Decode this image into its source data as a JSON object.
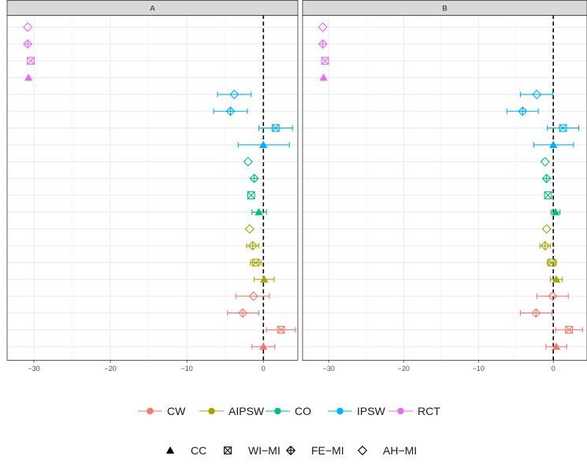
{
  "chart_data": {
    "type": "scatter",
    "subtype": "forest-plot with error bars, faceted",
    "facets": [
      "A",
      "B"
    ],
    "x_ticks": [
      -30,
      -20,
      -10,
      0
    ],
    "x_tick_labels": [
      "−30",
      "−20",
      "−10",
      "0"
    ],
    "xlim": [
      -33.5,
      4.5
    ],
    "reference_line_x": 0,
    "grid": true,
    "legend_position": "bottom",
    "colors": {
      "CW": "#F8766D",
      "AIPSW": "#A3A500",
      "CO": "#00BF7D",
      "IPSW": "#00B0F6",
      "RCT": "#E76BF3"
    },
    "legend_methods": [
      "CW",
      "AIPSW",
      "CO",
      "IPSW",
      "RCT"
    ],
    "legend_imputations": [
      {
        "label": "CC",
        "shape": "triangle"
      },
      {
        "label": "WI−MI",
        "shape": "square-cross"
      },
      {
        "label": "FE−MI",
        "shape": "diamond-plus"
      },
      {
        "label": "AH−MI",
        "shape": "diamond"
      }
    ],
    "rows": [
      {
        "method": "RCT",
        "imputation": "AH−MI"
      },
      {
        "method": "RCT",
        "imputation": "FE−MI"
      },
      {
        "method": "RCT",
        "imputation": "WI−MI"
      },
      {
        "method": "RCT",
        "imputation": "CC"
      },
      {
        "method": "IPSW",
        "imputation": "AH−MI"
      },
      {
        "method": "IPSW",
        "imputation": "FE−MI"
      },
      {
        "method": "IPSW",
        "imputation": "WI−MI"
      },
      {
        "method": "IPSW",
        "imputation": "CC"
      },
      {
        "method": "CO",
        "imputation": "AH−MI"
      },
      {
        "method": "CO",
        "imputation": "FE−MI"
      },
      {
        "method": "CO",
        "imputation": "WI−MI"
      },
      {
        "method": "CO",
        "imputation": "CC"
      },
      {
        "method": "AIPSW",
        "imputation": "AH−MI"
      },
      {
        "method": "AIPSW",
        "imputation": "FE−MI"
      },
      {
        "method": "AIPSW",
        "imputation": "WI−MI"
      },
      {
        "method": "AIPSW",
        "imputation": "CC"
      },
      {
        "method": "CW",
        "imputation": "AH−MI"
      },
      {
        "method": "CW",
        "imputation": "FE−MI"
      },
      {
        "method": "CW",
        "imputation": "WI−MI"
      },
      {
        "method": "CW",
        "imputation": "CC"
      }
    ],
    "panels": [
      {
        "label": "A",
        "estimates": [
          {
            "est": -30.8
          },
          {
            "est": -30.8
          },
          {
            "est": -30.4
          },
          {
            "est": -30.7
          },
          {
            "est": -3.8,
            "lo": -6.0,
            "hi": -1.6
          },
          {
            "est": -4.3,
            "lo": -6.5,
            "hi": -2.1
          },
          {
            "est": 1.6,
            "lo": -0.6,
            "hi": 3.8
          },
          {
            "est": 0.0,
            "lo": -3.3,
            "hi": 3.4
          },
          {
            "est": -2.0
          },
          {
            "est": -1.2
          },
          {
            "est": -1.6
          },
          {
            "est": -0.6,
            "lo": -1.5,
            "hi": 0.4
          },
          {
            "est": -1.8
          },
          {
            "est": -1.4,
            "lo": -2.2,
            "hi": -0.6
          },
          {
            "est": -1.0,
            "lo": -1.7,
            "hi": -0.3
          },
          {
            "est": 0.1,
            "lo": -1.2,
            "hi": 1.4
          },
          {
            "est": -1.3,
            "lo": -3.6,
            "hi": 0.8
          },
          {
            "est": -2.7,
            "lo": -4.7,
            "hi": -0.6
          },
          {
            "est": 2.3,
            "lo": 0.4,
            "hi": 4.2
          },
          {
            "est": 0.0,
            "lo": -1.5,
            "hi": 1.5
          }
        ]
      },
      {
        "label": "B",
        "estimates": [
          {
            "est": -30.8
          },
          {
            "est": -30.8
          },
          {
            "est": -30.5
          },
          {
            "est": -30.7
          },
          {
            "est": -2.2,
            "lo": -4.4,
            "hi": -0.1
          },
          {
            "est": -4.1,
            "lo": -6.2,
            "hi": -2.0
          },
          {
            "est": 1.3,
            "lo": -0.8,
            "hi": 3.4
          },
          {
            "est": 0.0,
            "lo": -2.6,
            "hi": 2.7
          },
          {
            "est": -1.1
          },
          {
            "est": -0.9
          },
          {
            "est": -0.7
          },
          {
            "est": 0.3,
            "lo": -0.3,
            "hi": 0.9
          },
          {
            "est": -0.9
          },
          {
            "est": -1.1,
            "lo": -1.8,
            "hi": -0.4
          },
          {
            "est": -0.2,
            "lo": -0.8,
            "hi": 0.4
          },
          {
            "est": 0.4,
            "lo": -0.4,
            "hi": 1.2
          },
          {
            "est": -0.1,
            "lo": -2.2,
            "hi": 2.0
          },
          {
            "est": -2.3,
            "lo": -4.4,
            "hi": -0.2
          },
          {
            "est": 2.1,
            "lo": 0.3,
            "hi": 3.9
          },
          {
            "est": 0.4,
            "lo": -1.0,
            "hi": 1.8
          }
        ]
      }
    ]
  }
}
